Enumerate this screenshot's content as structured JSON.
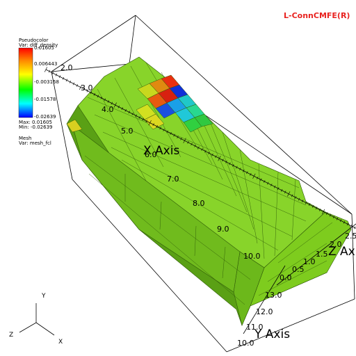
{
  "title": {
    "text": "L-ConnCMFE(R)",
    "color": "#e8221f"
  },
  "legend": {
    "plot_type": "Pseudocolor",
    "var_label": "Var: diff_density",
    "top_value": "0.01605",
    "ticks": [
      "0.006443",
      "-0.003168",
      "-0.01578",
      "-0.02639"
    ],
    "max_label": "Max: 0.01605",
    "min_label": "Min: -0.02639",
    "colors": [
      "#ff0000",
      "#ff8800",
      "#ffff00",
      "#00ff00",
      "#00ffff",
      "#0000ff"
    ]
  },
  "mesh_legend": {
    "plot_type": "Mesh",
    "var_label": "Var: mesh_fcl"
  },
  "axes": {
    "x_title": "X Axis",
    "y_title": "Y Axis",
    "z_title": "Z Axis",
    "x_ticks": [
      "2.0",
      "3.0",
      "4.0",
      "5.0",
      "6.0",
      "7.0",
      "8.0",
      "9.0",
      "10.0"
    ],
    "y_ticks": [
      "10.0",
      "11.0",
      "12.0",
      "13.0"
    ],
    "z_ticks": [
      "0.0",
      "0.5",
      "1.0",
      "1.5",
      "2.0",
      "2.5"
    ]
  },
  "triad": {
    "x": "X",
    "y": "Y",
    "z": "Z"
  },
  "colors": {
    "mesh_green": "#7ecc1e",
    "mesh_dark": "#4f8a10",
    "bounding_box": "#000000"
  }
}
